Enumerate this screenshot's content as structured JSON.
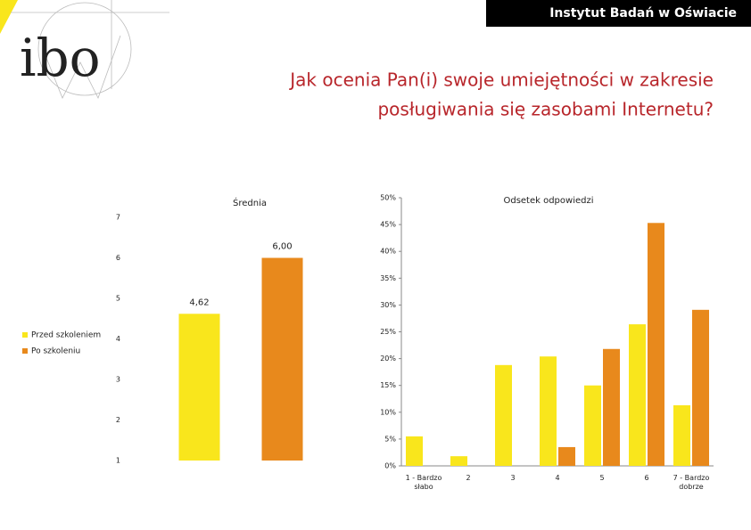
{
  "header": {
    "institute": "Instytut Badań w Oświacie",
    "logo": "ibo",
    "title": [
      "Jak ocenia Pan(i) swoje umiejętności w zakresie",
      "posługiwania się zasobami Internetu?"
    ]
  },
  "chart_data": [
    {
      "type": "bar",
      "title": "Średnia",
      "categories": [
        null
      ],
      "series": [
        {
          "name": "Przed szkoleniem",
          "color": "#f9e61c",
          "values": [
            4.62
          ],
          "value_labels": [
            "4,62"
          ]
        },
        {
          "name": "Po szkoleniu",
          "color": "#e8891c",
          "values": [
            6.0
          ],
          "value_labels": [
            "6,00"
          ]
        }
      ],
      "ylim": [
        1,
        7
      ],
      "yticks": [
        1,
        2,
        3,
        4,
        5,
        6,
        7
      ],
      "grid": false,
      "legend": "left"
    },
    {
      "type": "bar",
      "title": "Odsetek odpowiedzi",
      "categories": [
        "1 - Bardzo słabo",
        "2",
        "3",
        "4",
        "5",
        "6",
        "7 - Bardzo dobrze"
      ],
      "series": [
        {
          "color": "#f9e61c",
          "values": [
            5.5,
            1.8,
            18.8,
            20.4,
            15.0,
            26.4,
            11.3
          ]
        },
        {
          "color": "#e8891c",
          "values": [
            0,
            0,
            0,
            3.5,
            21.8,
            45.3,
            29.1
          ]
        }
      ],
      "ylim": [
        0,
        50
      ],
      "yticks": [
        {
          "value": 0,
          "label": "0%"
        },
        {
          "value": 5,
          "label": "5%"
        },
        {
          "value": 10,
          "label": "10%"
        },
        {
          "value": 15,
          "label": "15%"
        },
        {
          "value": 20,
          "label": "20%"
        },
        {
          "value": 25,
          "label": "25%"
        },
        {
          "value": 30,
          "label": "30%"
        },
        {
          "value": 35,
          "label": "35%"
        },
        {
          "value": 40,
          "label": "40%"
        },
        {
          "value": 45,
          "label": "45%"
        },
        {
          "value": 50,
          "label": "50%"
        }
      ],
      "grid": false
    }
  ]
}
